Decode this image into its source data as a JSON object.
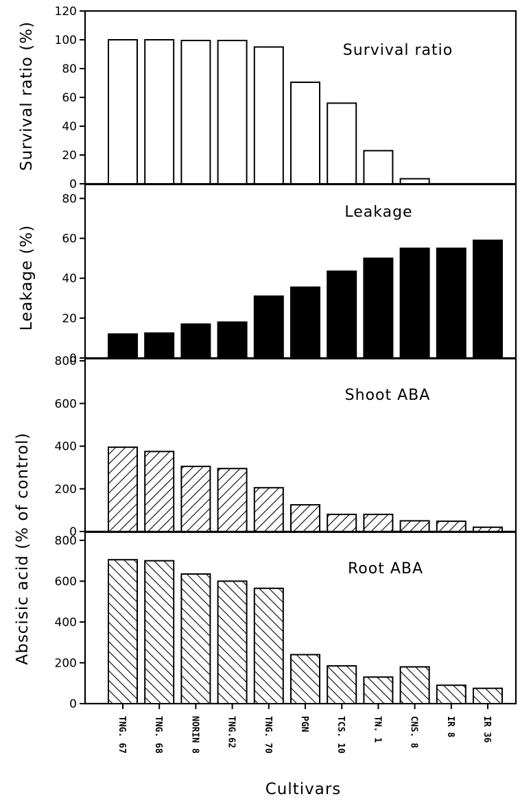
{
  "chart_data": {
    "type": "bar",
    "categories": [
      "TNG. 67",
      "TNG. 68",
      "NORIN 8",
      "TNG.62",
      "TNG. 70",
      "PGN",
      "TCS. 10",
      "TN. 1",
      "CNS. 8",
      "IR 8",
      "IR 36"
    ],
    "xlabel": "Cultivars",
    "panels": [
      {
        "title": "Survival ratio",
        "ylabel": "Survival ratio (%)",
        "ylim": [
          0,
          120
        ],
        "yticks": [
          0,
          20,
          40,
          60,
          80,
          100,
          120
        ],
        "fill": "white",
        "values": [
          100,
          100,
          99.5,
          99.5,
          95,
          70.5,
          56,
          23,
          3.5,
          0,
          0
        ]
      },
      {
        "title": "Leakage",
        "ylabel": "Leakage (%)",
        "ylim": [
          0,
          87
        ],
        "yticks": [
          0,
          20,
          40,
          60,
          80
        ],
        "fill": "black",
        "values": [
          12,
          12.5,
          17,
          18,
          31,
          35.5,
          43.5,
          50,
          55,
          55,
          59
        ]
      },
      {
        "title": "Shoot ABA",
        "ylim": [
          0,
          810
        ],
        "yticks": [
          0,
          200,
          400,
          600,
          800
        ],
        "fill": "hatch-forward",
        "values": [
          395,
          375,
          305,
          295,
          205,
          125,
          80,
          80,
          50,
          48,
          20
        ]
      },
      {
        "title": "Root ABA",
        "ylim": [
          0,
          840
        ],
        "yticks": [
          0,
          200,
          400,
          600,
          800
        ],
        "fill": "hatch-back",
        "values": [
          705,
          700,
          635,
          600,
          565,
          240,
          185,
          130,
          180,
          90,
          75
        ]
      }
    ],
    "shared_ylabel": "Abscisic acid (% of control)"
  }
}
